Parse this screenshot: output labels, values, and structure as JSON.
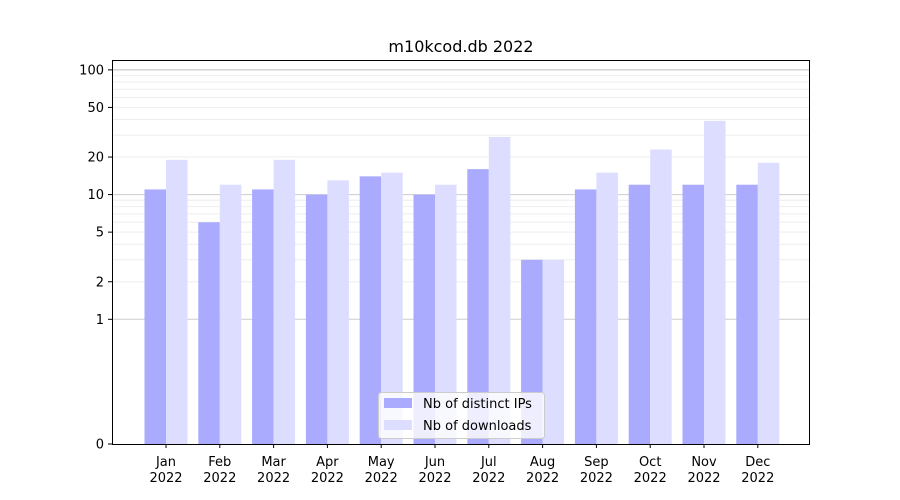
{
  "chart_data": {
    "type": "bar",
    "title": "m10kcod.db 2022",
    "xlabel": "",
    "ylabel": "",
    "y_scale": "symlog",
    "ylim": [
      0,
      120
    ],
    "y_ticks": [
      0,
      1,
      2,
      5,
      10,
      20,
      50,
      100
    ],
    "categories": [
      [
        "Jan",
        "2022"
      ],
      [
        "Feb",
        "2022"
      ],
      [
        "Mar",
        "2022"
      ],
      [
        "Apr",
        "2022"
      ],
      [
        "May",
        "2022"
      ],
      [
        "Jun",
        "2022"
      ],
      [
        "Jul",
        "2022"
      ],
      [
        "Aug",
        "2022"
      ],
      [
        "Sep",
        "2022"
      ],
      [
        "Oct",
        "2022"
      ],
      [
        "Nov",
        "2022"
      ],
      [
        "Dec",
        "2022"
      ]
    ],
    "series": [
      {
        "name": "Nb of distinct IPs",
        "color": "#aaaaff",
        "values": [
          11,
          6,
          11,
          10,
          14,
          10,
          16,
          3,
          11,
          12,
          12,
          12
        ]
      },
      {
        "name": "Nb of downloads",
        "color": "#ddddff",
        "values": [
          19,
          12,
          19,
          13,
          15,
          12,
          29,
          3,
          15,
          23,
          39,
          18
        ]
      }
    ],
    "legend_position": "bottom-center",
    "grid": true
  }
}
